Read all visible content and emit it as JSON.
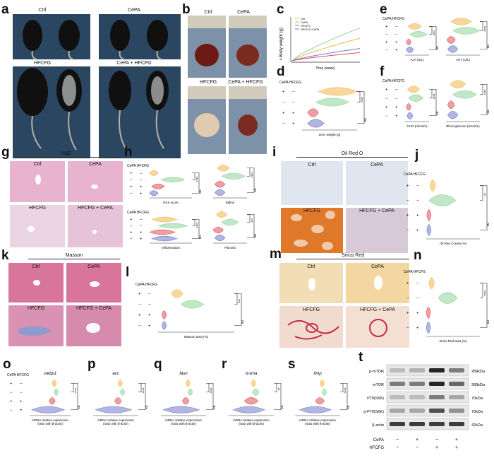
{
  "panels": {
    "a": {
      "label": "a",
      "groups": [
        "Ctrl",
        "CePA",
        "HFCFG",
        "CePA + HFCFG"
      ]
    },
    "b": {
      "label": "b",
      "groups": [
        "Ctrl",
        "CePA",
        "HFCFG",
        "CePA + HFCFG"
      ]
    },
    "c": {
      "label": "c",
      "ylabel": "r-Body weight (g)",
      "xlabel": "Time (week)",
      "legend": [
        "Ctrl",
        "CePA",
        "HFCFG",
        "HFCFG+CePA"
      ]
    },
    "d": {
      "label": "d",
      "header": "CePA HFCFG",
      "xlabel": "Liver weight (g)"
    },
    "e": {
      "label": "e",
      "header": "CePA HFCFG",
      "xlabels": [
        "ALT (U/L)",
        "AST (U/L)"
      ]
    },
    "f": {
      "label": "f",
      "header": "CePA HFCFG",
      "xlabels": [
        "CHO (mmol/L)",
        "Blood glucose (mmol/L)"
      ]
    },
    "g": {
      "label": "g",
      "stain": "H&E",
      "groups": [
        "Ctrl",
        "CePA",
        "HFCFG",
        "HFCFG + CePA"
      ]
    },
    "h": {
      "label": "h",
      "header": "CePA HFCFG",
      "xlabels": [
        "NAS score",
        "Ballon",
        "Inflammation",
        "Fibrosis"
      ]
    },
    "i": {
      "label": "i",
      "stain": "Oil Red O",
      "groups": [
        "Ctrl",
        "CePA",
        "HFCFG",
        "HFCFG + CePA"
      ]
    },
    "j": {
      "label": "j",
      "header": "CePA HFCFG",
      "xlabel": "Oil Red O area (%)"
    },
    "k": {
      "label": "k",
      "stain": "Masson",
      "groups": [
        "Ctrl",
        "CePA",
        "HFCFG",
        "HFCFG + CePA"
      ]
    },
    "l": {
      "label": "l",
      "header": "CePA HFCFG",
      "xlabel": "Masson area (%)"
    },
    "m": {
      "label": "m",
      "stain": "Sirius Red",
      "groups": [
        "Ctrl",
        "CePA",
        "HFCFG",
        "HFCFG + CePA"
      ]
    },
    "n": {
      "label": "n",
      "header": "CePA HFCFG",
      "xlabel": "Sirius Red area (%)"
    },
    "o": {
      "label": "o",
      "gene": "srebp1",
      "header": "CePA HFCFG"
    },
    "p": {
      "label": "p",
      "gene": "acc"
    },
    "q": {
      "label": "q",
      "gene": "fasn"
    },
    "r": {
      "label": "r",
      "gene": "α-sma"
    },
    "s": {
      "label": "s",
      "gene": "timp"
    },
    "t": {
      "label": "t",
      "proteins": [
        "p-mTOR",
        "mTOR",
        "P70(S6K)",
        "p-P70(S6K)",
        "β-actin"
      ],
      "sizes": [
        "289kDa",
        "289kDa",
        "70kDa",
        "70kDa",
        "42kDa"
      ],
      "rows": [
        "CePA",
        "HFCFG"
      ],
      "cepa_signs": [
        "−",
        "+",
        "−",
        "+"
      ],
      "hfcfg_signs": [
        "−",
        "−",
        "+",
        "+"
      ]
    }
  },
  "qpcr_xlabel": "mRNA relative expression\n(ratio with β-actin)",
  "signs": {
    "plus": "+",
    "minus": "−"
  },
  "sig": {
    "four": "****",
    "three": "***",
    "two": "**",
    "ns": "ns"
  },
  "colors": {
    "ctrl": "#f2b64a",
    "cepa": "#8fd49a",
    "hfcfg": "#e0505a",
    "combo": "#6f79c9",
    "he": "#e7b3cf",
    "oil_bg": "#dfe6ef",
    "oil_red": "#e0782a",
    "masson": "#d9759b",
    "sirius_bg": "#f2ddb4",
    "sirius_red": "#c8284a"
  }
}
